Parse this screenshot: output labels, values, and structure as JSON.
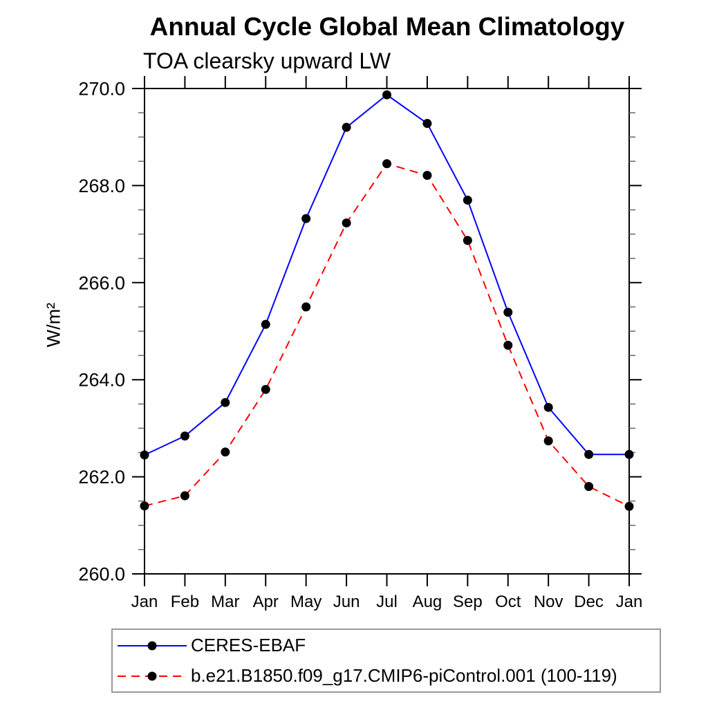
{
  "page": {
    "background": "#ffffff"
  },
  "chart_data": {
    "type": "line",
    "title": "Annual Cycle Global Mean Climatology",
    "subtitle": "TOA clearsky upward LW",
    "xlabel": "",
    "ylabel": "W/m²",
    "categories": [
      "Jan",
      "Feb",
      "Mar",
      "Apr",
      "May",
      "Jun",
      "Jul",
      "Aug",
      "Sep",
      "Oct",
      "Nov",
      "Dec",
      "Jan"
    ],
    "ylim": [
      260.0,
      270.0
    ],
    "ytick_major": [
      260.0,
      262.0,
      264.0,
      266.0,
      268.0,
      270.0
    ],
    "ytick_labels": [
      "260.0",
      "262.0",
      "264.0",
      "266.0",
      "268.0",
      "270.0"
    ],
    "ytick_minor_step": 0.5,
    "grid": false,
    "legend_position": "bottom-left-box",
    "axis_color": "#000000",
    "minor_tick_color": "#666666",
    "marker_color": "#000000",
    "series": [
      {
        "name": "CERES-EBAF",
        "color": "#0000ff",
        "style": "solid",
        "marker": "circle",
        "values": [
          262.45,
          262.84,
          263.53,
          265.14,
          267.32,
          269.2,
          269.87,
          269.28,
          267.7,
          265.39,
          263.43,
          262.46,
          262.46
        ]
      },
      {
        "name": "b.e21.B1850.f09_g17.CMIP6-piControl.001 (100-119)",
        "color": "#ff0000",
        "style": "dashed",
        "marker": "circle",
        "values": [
          261.4,
          261.61,
          262.51,
          263.8,
          265.5,
          267.23,
          268.45,
          268.21,
          266.87,
          264.71,
          262.74,
          261.8,
          261.39
        ]
      }
    ]
  }
}
